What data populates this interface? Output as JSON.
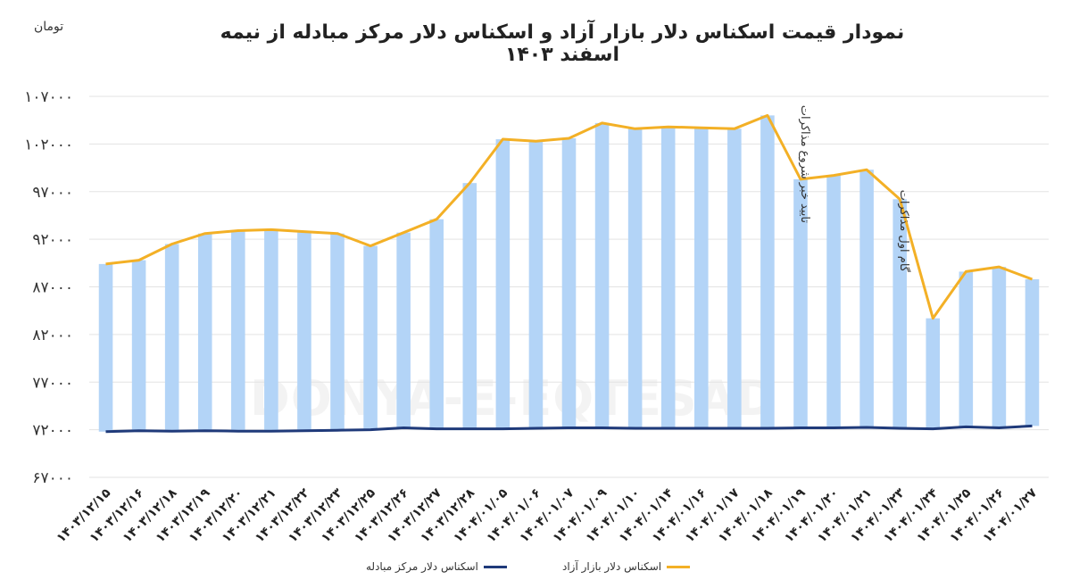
{
  "chart_data": {
    "type": "bar+line",
    "title": "نمودار قیمت اسکناس دلار بازار آزاد و اسکناس دلار مرکز مبادله از نیمه اسفند ۱۴۰۳",
    "unit": "تومان",
    "watermark": "DONYA-E-EQTESAD",
    "ylim": [
      67000,
      107000
    ],
    "yticks": [
      67000,
      72000,
      77000,
      82000,
      87000,
      92000,
      97000,
      102000,
      107000
    ],
    "ytick_labels": [
      "۶۷۰۰۰",
      "۷۲۰۰۰",
      "۷۷۰۰۰",
      "۸۲۰۰۰",
      "۸۷۰۰۰",
      "۹۲۰۰۰",
      "۹۷۰۰۰",
      "۱۰۲۰۰۰",
      "۱۰۷۰۰۰"
    ],
    "categories": [
      "۱۴۰۳/۱۲/۱۵",
      "۱۴۰۳/۱۲/۱۶",
      "۱۴۰۳/۱۲/۱۸",
      "۱۴۰۳/۱۲/۱۹",
      "۱۴۰۳/۱۲/۲۰",
      "۱۴۰۳/۱۲/۲۱",
      "۱۴۰۳/۱۲/۲۲",
      "۱۴۰۳/۱۲/۲۳",
      "۱۴۰۳/۱۲/۲۵",
      "۱۴۰۳/۱۲/۲۶",
      "۱۴۰۳/۱۲/۲۷",
      "۱۴۰۳/۱۲/۲۸",
      "۱۴۰۴/۰۱/۰۵",
      "۱۴۰۴/۰۱/۰۶",
      "۱۴۰۴/۰۱/۰۷",
      "۱۴۰۴/۰۱/۰۹",
      "۱۴۰۴/۰۱/۱۰",
      "۱۴۰۴/۰۱/۱۴",
      "۱۴۰۴/۰۱/۱۶",
      "۱۴۰۴/۰۱/۱۷",
      "۱۴۰۴/۰۱/۱۸",
      "۱۴۰۴/۰۱/۱۹",
      "۱۴۰۴/۰۱/۲۰",
      "۱۴۰۴/۰۱/۲۱",
      "۱۴۰۴/۰۱/۲۳",
      "۱۴۰۴/۰۱/۲۴",
      "۱۴۰۴/۰۱/۲۵",
      "۱۴۰۴/۰۱/۲۶",
      "۱۴۰۴/۰۱/۲۷"
    ],
    "series": [
      {
        "name": "اسکناس دلار بازار آزاد",
        "color": "#f3b026",
        "bar_color": "#b3d4f7",
        "values": [
          89400,
          89800,
          91500,
          92600,
          92900,
          93000,
          92800,
          92600,
          91300,
          92700,
          94100,
          97900,
          102500,
          102300,
          102600,
          104200,
          103600,
          103800,
          103700,
          103600,
          105000,
          98300,
          98700,
          99300,
          96200,
          83700,
          88600,
          89100,
          87800
        ]
      },
      {
        "name": "اسکناس دلار مرکز مبادله",
        "color": "#1f3a7a",
        "values": [
          71800,
          71900,
          71850,
          71900,
          71850,
          71850,
          71900,
          71950,
          72000,
          72200,
          72100,
          72100,
          72100,
          72150,
          72200,
          72200,
          72150,
          72150,
          72150,
          72150,
          72150,
          72200,
          72200,
          72250,
          72150,
          72100,
          72300,
          72200,
          72400
        ]
      }
    ],
    "annotations": [
      {
        "text": "تایید خبر شروع مذاکرات",
        "category_index": 21
      },
      {
        "text": "گام اول مذاکرات",
        "category_index": 24
      }
    ]
  }
}
